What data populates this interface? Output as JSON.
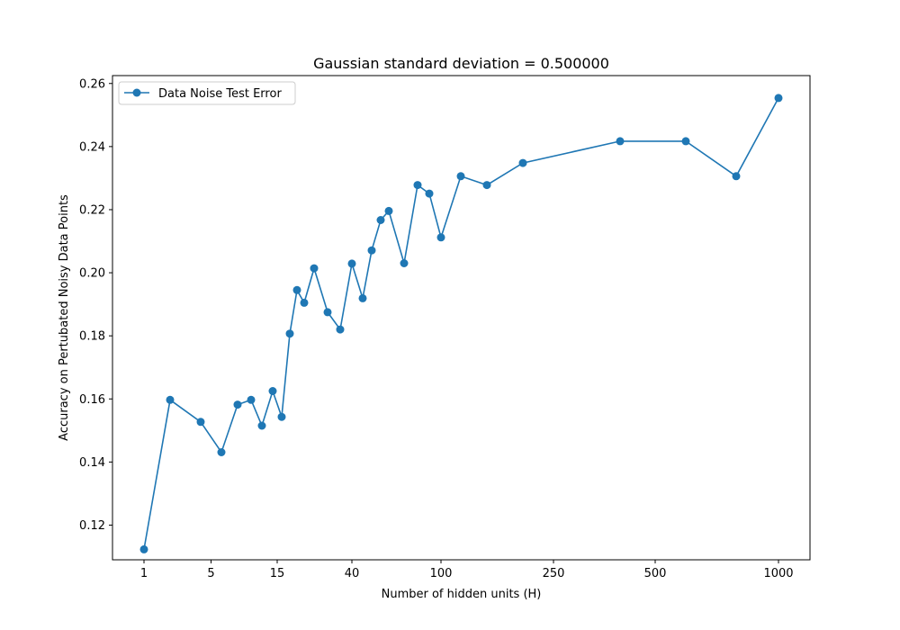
{
  "chart_data": {
    "type": "line",
    "title": "Gaussian standard deviation = 0.500000",
    "xlabel": "Number of hidden units (H)",
    "ylabel": "Accuracy on Pertubated Noisy Data Points",
    "x_scale": "nonlinear (custom ticks, roughly log-like)",
    "x_ticks": [
      "1",
      "5",
      "15",
      "40",
      "100",
      "250",
      "500",
      "1000"
    ],
    "y_ticks": [
      "0.12",
      "0.14",
      "0.16",
      "0.18",
      "0.20",
      "0.22",
      "0.24",
      "0.26"
    ],
    "ylim": [
      0.109,
      0.2625
    ],
    "grid": false,
    "legend_position": "upper-left",
    "color": "#1f77b4",
    "series": [
      {
        "name": "Data Noise Test Error",
        "points": [
          {
            "x": 1,
            "y": 0.1123
          },
          {
            "x": 2,
            "y": 0.1597
          },
          {
            "x": 4,
            "y": 0.1527
          },
          {
            "x": 6,
            "y": 0.1431
          },
          {
            "x": 8,
            "y": 0.1582
          },
          {
            "x": 10,
            "y": 0.1597
          },
          {
            "x": 12,
            "y": 0.1515
          },
          {
            "x": 14,
            "y": 0.1625
          },
          {
            "x": 16,
            "y": 0.1543
          },
          {
            "x": 18,
            "y": 0.1807
          },
          {
            "x": 20,
            "y": 0.1945
          },
          {
            "x": 23,
            "y": 0.1905
          },
          {
            "x": 27,
            "y": 0.2014
          },
          {
            "x": 32,
            "y": 0.1875
          },
          {
            "x": 36,
            "y": 0.182
          },
          {
            "x": 40,
            "y": 0.2029
          },
          {
            "x": 45,
            "y": 0.1919
          },
          {
            "x": 50,
            "y": 0.2071
          },
          {
            "x": 55,
            "y": 0.2167
          },
          {
            "x": 60,
            "y": 0.2196
          },
          {
            "x": 70,
            "y": 0.203
          },
          {
            "x": 80,
            "y": 0.2278
          },
          {
            "x": 90,
            "y": 0.2251
          },
          {
            "x": 100,
            "y": 0.2112
          },
          {
            "x": 120,
            "y": 0.2306
          },
          {
            "x": 150,
            "y": 0.2278
          },
          {
            "x": 200,
            "y": 0.2348
          },
          {
            "x": 400,
            "y": 0.2417
          },
          {
            "x": 600,
            "y": 0.2417
          },
          {
            "x": 800,
            "y": 0.2306
          },
          {
            "x": 1000,
            "y": 0.2554
          }
        ]
      }
    ]
  }
}
